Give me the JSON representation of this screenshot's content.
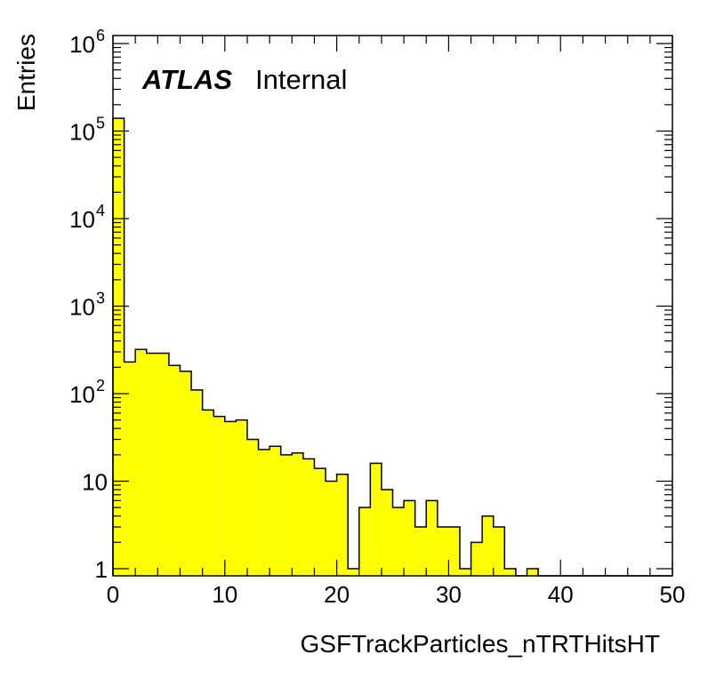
{
  "chart_data": {
    "type": "bar",
    "title": "",
    "xlabel": "GSFTrackParticles_nTRTHitsHT",
    "ylabel": "Entries",
    "log_y": true,
    "xlim": [
      0,
      50
    ],
    "ylim": [
      0.9,
      1200000
    ],
    "bin_width": 1,
    "bin_lows": [
      0,
      1,
      2,
      3,
      4,
      5,
      6,
      7,
      8,
      9,
      10,
      11,
      12,
      13,
      14,
      15,
      16,
      17,
      18,
      19,
      20,
      21,
      22,
      23,
      24,
      25,
      26,
      27,
      28,
      29,
      30,
      31,
      32,
      33,
      34,
      35,
      36,
      37,
      38,
      39,
      40,
      41,
      42,
      43,
      44,
      45,
      46,
      47,
      48,
      49
    ],
    "values": [
      140000,
      230,
      320,
      290,
      290,
      210,
      180,
      110,
      65,
      55,
      48,
      50,
      30,
      23,
      25,
      20,
      21,
      18,
      14,
      10,
      12,
      1,
      5,
      16,
      8,
      5,
      6,
      3,
      6,
      3,
      3,
      1,
      2,
      4,
      3,
      1,
      0,
      1,
      0,
      0,
      0,
      0,
      0,
      0,
      0,
      0,
      0,
      0,
      0,
      0
    ],
    "fill_color": "#ffff00",
    "line_color": "#000000",
    "grid": false,
    "x_ticks": [
      "0",
      "10",
      "20",
      "30",
      "40",
      "50"
    ],
    "y_tick_mantissa": [
      "1",
      "10",
      "10",
      "10",
      "10",
      "10",
      "10"
    ],
    "y_tick_exponent": [
      "",
      "",
      "2",
      "3",
      "4",
      "5",
      "6"
    ],
    "label_atlas": "ATLAS",
    "label_status": "Internal"
  }
}
